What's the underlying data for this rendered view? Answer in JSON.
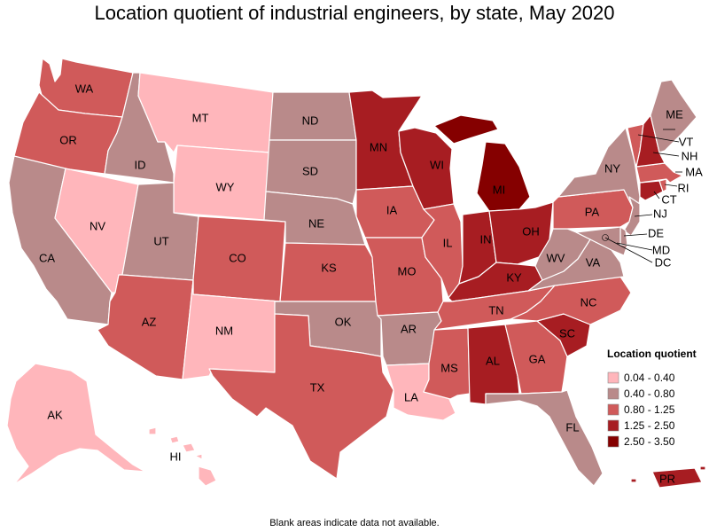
{
  "title": "Location quotient of industrial engineers, by state, May 2020",
  "footnote": "Blank areas indicate data not available.",
  "legend": {
    "title": "Location quotient",
    "bins": [
      {
        "label": "0.04 - 0.40",
        "color": "#ffb6bb"
      },
      {
        "label": "0.40 - 0.80",
        "color": "#b98a8a"
      },
      {
        "label": "0.80 - 1.25",
        "color": "#d05a5a"
      },
      {
        "label": "1.25 - 2.50",
        "color": "#a71d22"
      },
      {
        "label": "2.50 - 3.50",
        "color": "#850000"
      }
    ]
  },
  "states": {
    "WA": {
      "bin": 2
    },
    "OR": {
      "bin": 2
    },
    "CA": {
      "bin": 1
    },
    "NV": {
      "bin": 0
    },
    "ID": {
      "bin": 1
    },
    "MT": {
      "bin": 0
    },
    "WY": {
      "bin": 0
    },
    "UT": {
      "bin": 1
    },
    "AZ": {
      "bin": 2
    },
    "CO": {
      "bin": 2
    },
    "NM": {
      "bin": 0
    },
    "ND": {
      "bin": 1
    },
    "SD": {
      "bin": 1
    },
    "NE": {
      "bin": 1
    },
    "KS": {
      "bin": 2
    },
    "OK": {
      "bin": 1
    },
    "TX": {
      "bin": 2
    },
    "MN": {
      "bin": 3
    },
    "IA": {
      "bin": 2
    },
    "MO": {
      "bin": 2
    },
    "AR": {
      "bin": 1
    },
    "LA": {
      "bin": 0
    },
    "WI": {
      "bin": 3
    },
    "IL": {
      "bin": 2
    },
    "MI": {
      "bin": 4
    },
    "IN": {
      "bin": 3
    },
    "OH": {
      "bin": 3
    },
    "KY": {
      "bin": 3
    },
    "TN": {
      "bin": 2
    },
    "MS": {
      "bin": 2
    },
    "AL": {
      "bin": 3
    },
    "GA": {
      "bin": 2
    },
    "FL": {
      "bin": 1
    },
    "SC": {
      "bin": 3
    },
    "NC": {
      "bin": 2
    },
    "VA": {
      "bin": 1
    },
    "WV": {
      "bin": 1
    },
    "PA": {
      "bin": 2
    },
    "NY": {
      "bin": 1
    },
    "VT": {
      "bin": 2
    },
    "NH": {
      "bin": 3
    },
    "ME": {
      "bin": 1
    },
    "MA": {
      "bin": 2
    },
    "RI": {
      "bin": 2
    },
    "CT": {
      "bin": 3
    },
    "NJ": {
      "bin": 1
    },
    "DE": {
      "bin": 1
    },
    "MD": {
      "bin": 1
    },
    "DC": {
      "bin": 1
    },
    "AK": {
      "bin": 0
    },
    "HI": {
      "bin": 0
    },
    "PR": {
      "bin": 3
    }
  }
}
